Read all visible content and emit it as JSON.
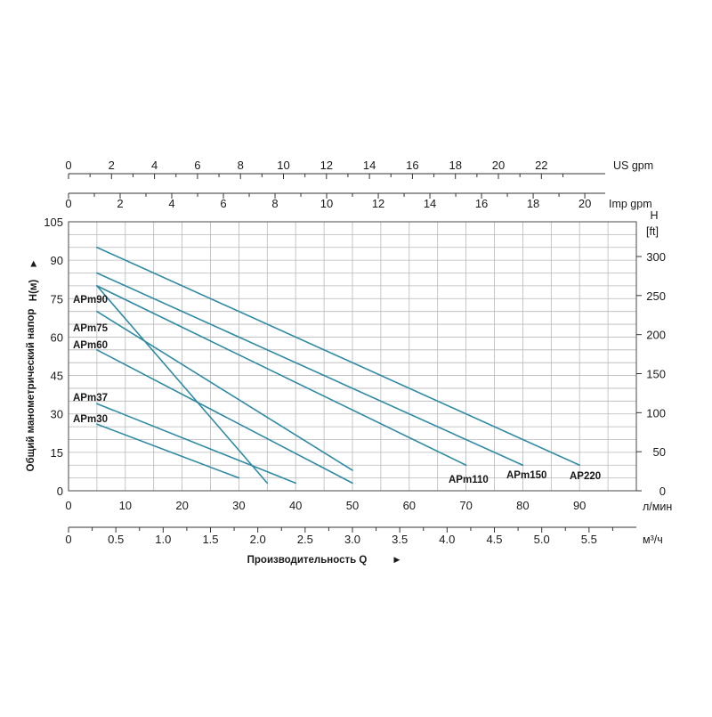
{
  "chart_data": {
    "type": "line",
    "xlabel": "Производительность Q",
    "ylabel": "Общий манометрический напор",
    "y_axis_symbol": "H(м)",
    "x_unit": "л/мин",
    "x2_unit": "м³/ч",
    "right_axis_title": "H",
    "right_axis_unit": "[ft]",
    "top_axis_us_unit": "US gpm",
    "top_axis_imp_unit": "Imp gpm",
    "arrow_glyph": "►",
    "xlim": [
      0,
      100
    ],
    "ylim": [
      0,
      105
    ],
    "grid": true,
    "x_ticks": [
      "0",
      "10",
      "20",
      "30",
      "40",
      "50",
      "60",
      "70",
      "80",
      "90"
    ],
    "x2_ticks": [
      "0",
      "0.5",
      "1.0",
      "1.5",
      "2.0",
      "2.5",
      "3.0",
      "3.5",
      "4.0",
      "4.5",
      "5.0",
      "5.5"
    ],
    "y_ticks": [
      "0",
      "15",
      "30",
      "45",
      "60",
      "75",
      "90",
      "105"
    ],
    "right_ticks": [
      "0",
      "50",
      "100",
      "150",
      "200",
      "250",
      "300"
    ],
    "us_gpm_ticks": [
      "0",
      "2",
      "4",
      "6",
      "8",
      "10",
      "12",
      "14",
      "16",
      "18",
      "20",
      "22"
    ],
    "imp_gpm_ticks": [
      "0",
      "2",
      "4",
      "6",
      "8",
      "10",
      "12",
      "14",
      "16",
      "18",
      "20"
    ],
    "series": [
      {
        "name": "APm30",
        "x": [
          5,
          30
        ],
        "y": [
          26,
          5
        ]
      },
      {
        "name": "APm37",
        "x": [
          5,
          40
        ],
        "y": [
          34,
          3
        ]
      },
      {
        "name": "APm60",
        "x": [
          5,
          50
        ],
        "y": [
          55,
          3
        ]
      },
      {
        "name": "APm75",
        "x": [
          5,
          50
        ],
        "y": [
          70,
          8
        ]
      },
      {
        "name": "APm90",
        "x": [
          5,
          35
        ],
        "y": [
          80,
          3
        ]
      },
      {
        "name": "APm110",
        "x": [
          5,
          70
        ],
        "y": [
          80,
          10
        ]
      },
      {
        "name": "APm150",
        "x": [
          5,
          80
        ],
        "y": [
          85,
          10
        ]
      },
      {
        "name": "AP220",
        "x": [
          5,
          90
        ],
        "y": [
          95,
          10
        ]
      }
    ],
    "color": "#2f8aa3"
  }
}
